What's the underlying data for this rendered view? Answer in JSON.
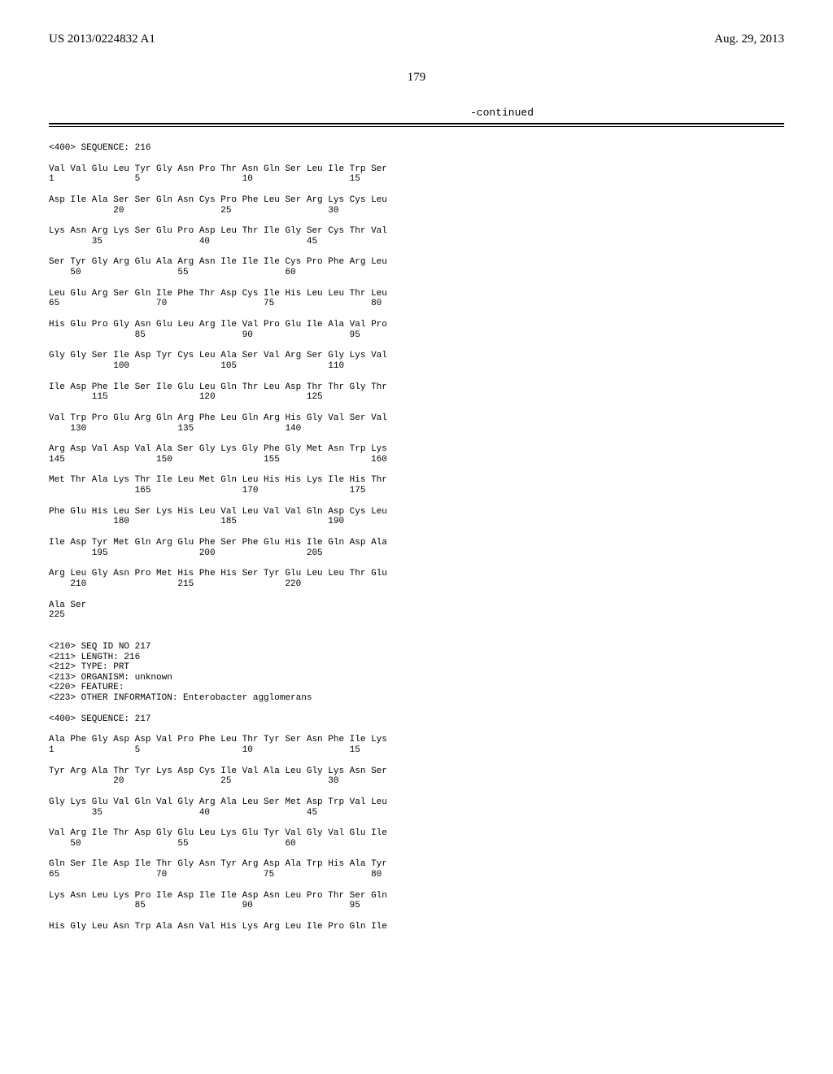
{
  "header": {
    "left": "US 2013/0224832 A1",
    "right": "Aug. 29, 2013"
  },
  "page_number": "179",
  "continued_label": "-continued",
  "seq216": {
    "header": "<400> SEQUENCE: 216",
    "rows": [
      {
        "res": "Val Val Glu Leu Tyr Gly Asn Pro Thr Asn Gln Ser Leu Ile Trp Ser",
        "num": "1               5                   10                  15"
      },
      {
        "res": "Asp Ile Ala Ser Ser Gln Asn Cys Pro Phe Leu Ser Arg Lys Cys Leu",
        "num": "            20                  25                  30"
      },
      {
        "res": "Lys Asn Arg Lys Ser Glu Pro Asp Leu Thr Ile Gly Ser Cys Thr Val",
        "num": "        35                  40                  45"
      },
      {
        "res": "Ser Tyr Gly Arg Glu Ala Arg Asn Ile Ile Ile Cys Pro Phe Arg Leu",
        "num": "    50                  55                  60"
      },
      {
        "res": "Leu Glu Arg Ser Gln Ile Phe Thr Asp Cys Ile His Leu Leu Thr Leu",
        "num": "65                  70                  75                  80"
      },
      {
        "res": "His Glu Pro Gly Asn Glu Leu Arg Ile Val Pro Glu Ile Ala Val Pro",
        "num": "                85                  90                  95"
      },
      {
        "res": "Gly Gly Ser Ile Asp Tyr Cys Leu Ala Ser Val Arg Ser Gly Lys Val",
        "num": "            100                 105                 110"
      },
      {
        "res": "Ile Asp Phe Ile Ser Ile Glu Leu Gln Thr Leu Asp Thr Thr Gly Thr",
        "num": "        115                 120                 125"
      },
      {
        "res": "Val Trp Pro Glu Arg Gln Arg Phe Leu Gln Arg His Gly Val Ser Val",
        "num": "    130                 135                 140"
      },
      {
        "res": "Arg Asp Val Asp Val Ala Ser Gly Lys Gly Phe Gly Met Asn Trp Lys",
        "num": "145                 150                 155                 160"
      },
      {
        "res": "Met Thr Ala Lys Thr Ile Leu Met Gln Leu His His Lys Ile His Thr",
        "num": "                165                 170                 175"
      },
      {
        "res": "Phe Glu His Leu Ser Lys His Leu Val Leu Val Val Gln Asp Cys Leu",
        "num": "            180                 185                 190"
      },
      {
        "res": "Ile Asp Tyr Met Gln Arg Glu Phe Ser Phe Glu His Ile Gln Asp Ala",
        "num": "        195                 200                 205"
      },
      {
        "res": "Arg Leu Gly Asn Pro Met His Phe His Ser Tyr Glu Leu Leu Thr Glu",
        "num": "    210                 215                 220"
      },
      {
        "res": "Ala Ser",
        "num": "225"
      }
    ]
  },
  "seq217": {
    "meta": [
      "<210> SEQ ID NO 217",
      "<211> LENGTH: 216",
      "<212> TYPE: PRT",
      "<213> ORGANISM: unknown",
      "<220> FEATURE:",
      "<223> OTHER INFORMATION: Enterobacter agglomerans"
    ],
    "header": "<400> SEQUENCE: 217",
    "rows": [
      {
        "res": "Ala Phe Gly Asp Asp Val Pro Phe Leu Thr Tyr Ser Asn Phe Ile Lys",
        "num": "1               5                   10                  15"
      },
      {
        "res": "Tyr Arg Ala Thr Tyr Lys Asp Cys Ile Val Ala Leu Gly Lys Asn Ser",
        "num": "            20                  25                  30"
      },
      {
        "res": "Gly Lys Glu Val Gln Val Gly Arg Ala Leu Ser Met Asp Trp Val Leu",
        "num": "        35                  40                  45"
      },
      {
        "res": "Val Arg Ile Thr Asp Gly Glu Leu Lys Glu Tyr Val Gly Val Glu Ile",
        "num": "    50                  55                  60"
      },
      {
        "res": "Gln Ser Ile Asp Ile Thr Gly Asn Tyr Arg Asp Ala Trp His Ala Tyr",
        "num": "65                  70                  75                  80"
      },
      {
        "res": "Lys Asn Leu Lys Pro Ile Asp Ile Ile Asp Asn Leu Pro Thr Ser Gln",
        "num": "                85                  90                  95"
      },
      {
        "res": "His Gly Leu Asn Trp Ala Asn Val His Lys Arg Leu Ile Pro Gln Ile",
        "num": ""
      }
    ]
  }
}
